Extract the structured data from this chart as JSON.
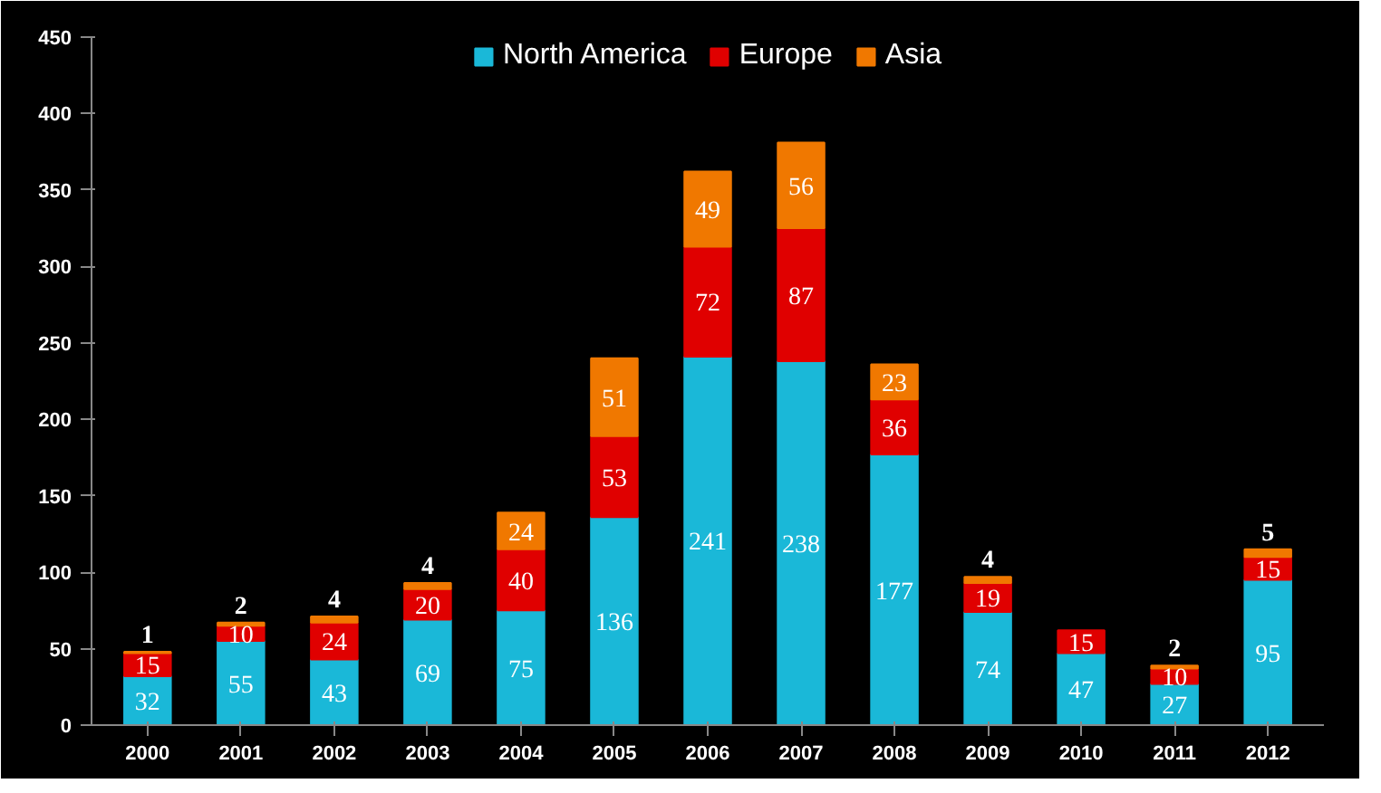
{
  "chart_data": {
    "type": "bar",
    "stacked": true,
    "categories": [
      "2000",
      "2001",
      "2002",
      "2003",
      "2004",
      "2005",
      "2006",
      "2007",
      "2008",
      "2009",
      "2010",
      "2011",
      "2012"
    ],
    "series": [
      {
        "name": "North America",
        "color": "#1ab8d8",
        "values": [
          32,
          55,
          43,
          69,
          75,
          136,
          241,
          238,
          177,
          74,
          47,
          27,
          95
        ]
      },
      {
        "name": "Europe",
        "color": "#e00000",
        "values": [
          15,
          10,
          24,
          20,
          40,
          53,
          72,
          87,
          36,
          19,
          15,
          10,
          15
        ]
      },
      {
        "name": "Asia",
        "color": "#f07800",
        "values": [
          1,
          2,
          4,
          4,
          24,
          51,
          49,
          56,
          23,
          4,
          null,
          2,
          5
        ]
      }
    ],
    "ylim": [
      0,
      450
    ],
    "yticks": [
      0,
      50,
      100,
      150,
      200,
      250,
      300,
      350,
      400,
      450
    ],
    "data_labels": true,
    "legend": "top",
    "grid": false
  }
}
